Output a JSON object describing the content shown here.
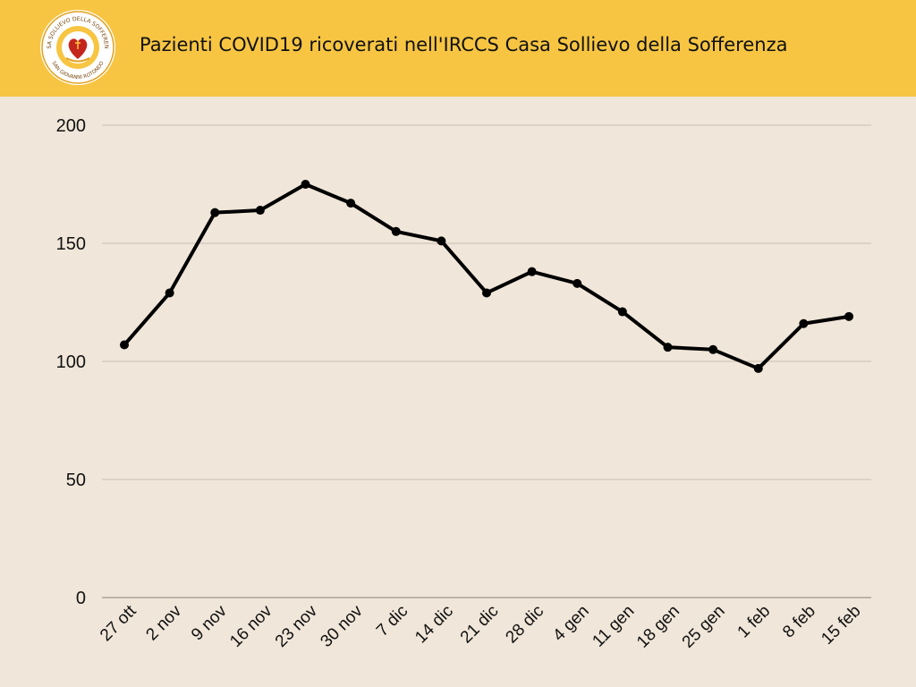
{
  "header": {
    "title": "Pazienti COVID19 ricoverati nell'IRCCS Casa Sollievo della Sofferenza",
    "logo_text_top": "CASA SOLLIEVO DELLA SOFFERENZA",
    "logo_text_bottom": "SAN GIOVANNI ROTONDO"
  },
  "colors": {
    "header_bg": "#f7c542",
    "page_bg": "#f0e6d9",
    "line": "#000000",
    "grid": "#c9bfb2"
  },
  "chart_data": {
    "type": "line",
    "title": "",
    "xlabel": "",
    "ylabel": "",
    "categories": [
      "27 ott",
      "2 nov",
      "9 nov",
      "16 nov",
      "23 nov",
      "30 nov",
      "7 dic",
      "14 dic",
      "21 dic",
      "28 dic",
      "4 gen",
      "11 gen",
      "18 gen",
      "25 gen",
      "1 feb",
      "8 feb",
      "15 feb"
    ],
    "values": [
      107,
      129,
      163,
      164,
      175,
      167,
      155,
      151,
      129,
      138,
      133,
      121,
      106,
      105,
      97,
      116,
      119
    ],
    "ylim": [
      0,
      200
    ],
    "yticks": [
      0,
      50,
      100,
      150,
      200
    ],
    "grid": true,
    "legend": "none"
  }
}
